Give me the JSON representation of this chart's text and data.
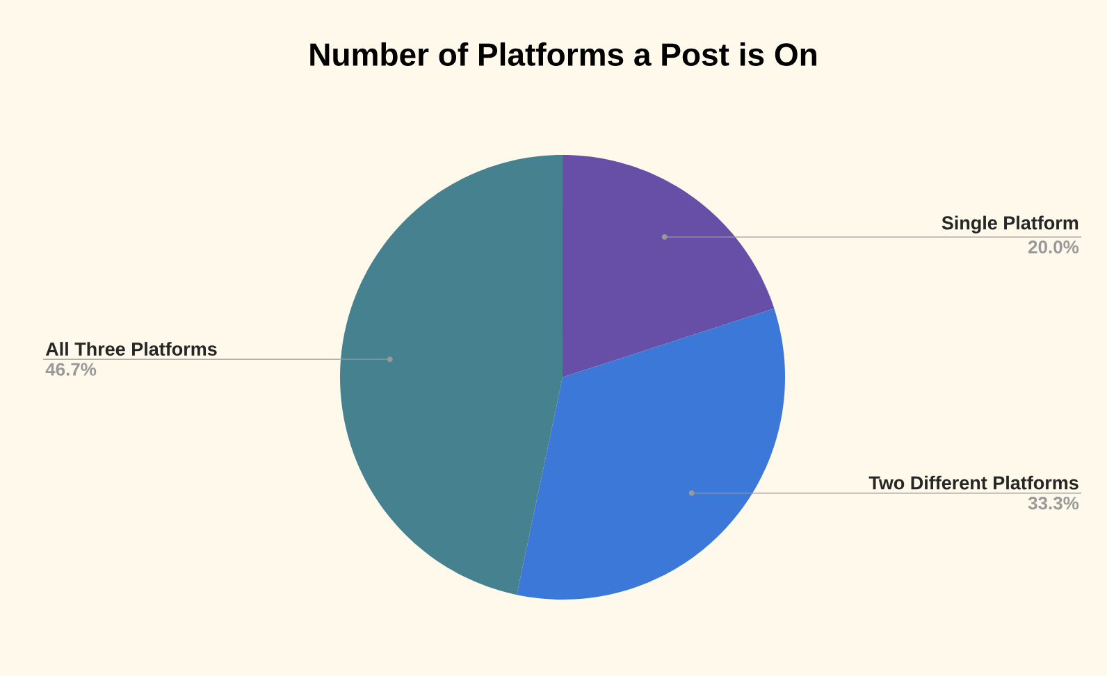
{
  "chart_data": {
    "type": "pie",
    "title": "Number of Platforms a Post is On",
    "categories": [
      "Single Platform",
      "Two Different Platforms",
      "All Three Platforms"
    ],
    "values": [
      20.0,
      33.3,
      46.7
    ],
    "colors": [
      "#674ea7",
      "#3c78d8",
      "#45818e"
    ],
    "value_labels": [
      "20.0%",
      "33.3%",
      "46.7%"
    ]
  }
}
